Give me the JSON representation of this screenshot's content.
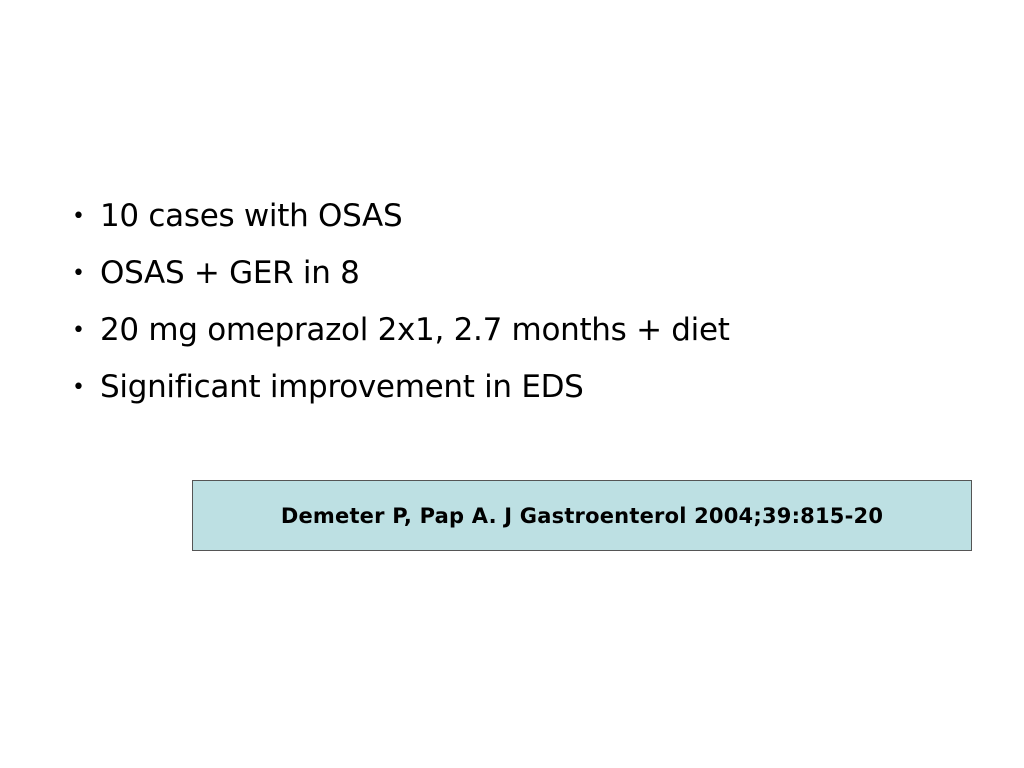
{
  "bullets": [
    "10 cases with OSAS",
    "OSAS + GER in 8",
    "20 mg omeprazol 2x1, 2.7 months + diet",
    "Significant improvement in EDS"
  ],
  "bullet_glyph": "•",
  "citation": {
    "text": "Demeter P, Pap A. J Gastroenterol 2004;39:815-20",
    "background": "#bde0e3"
  }
}
